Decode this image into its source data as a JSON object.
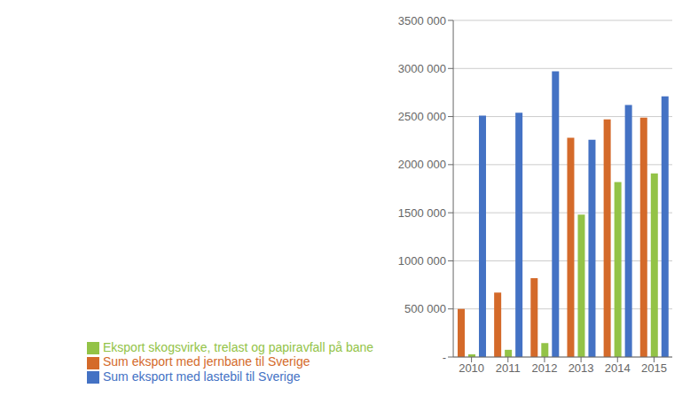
{
  "chart_data": {
    "type": "bar",
    "categories": [
      "2010",
      "2011",
      "2012",
      "2013",
      "2014",
      "2015"
    ],
    "series": [
      {
        "name": "Sum eksport med jernbane til Sverige",
        "color": "#D46A2A",
        "values": [
          500000,
          670000,
          820000,
          2280000,
          2470000,
          2490000
        ]
      },
      {
        "name": "Eksport skogsvirke, trelast og papiravfall på bane",
        "color": "#93C347",
        "values": [
          28000,
          75000,
          145000,
          1480000,
          1820000,
          1910000
        ]
      },
      {
        "name": "Sum eksport med lastebil til Sverige",
        "color": "#4472C4",
        "values": [
          2510000,
          2540000,
          2970000,
          2260000,
          2620000,
          2710000
        ]
      }
    ],
    "ylim": [
      0,
      3500000
    ],
    "yticks": [
      {
        "value": 0,
        "label": "-"
      },
      {
        "value": 500000,
        "label": "500 000"
      },
      {
        "value": 1000000,
        "label": "1000 000"
      },
      {
        "value": 1500000,
        "label": "1500 000"
      },
      {
        "value": 2000000,
        "label": "2000 000"
      },
      {
        "value": 2500000,
        "label": "2500 000"
      },
      {
        "value": 3000000,
        "label": "3000 000"
      },
      {
        "value": 3500000,
        "label": "3500 000"
      }
    ],
    "grid": true,
    "legend": "bottom"
  }
}
